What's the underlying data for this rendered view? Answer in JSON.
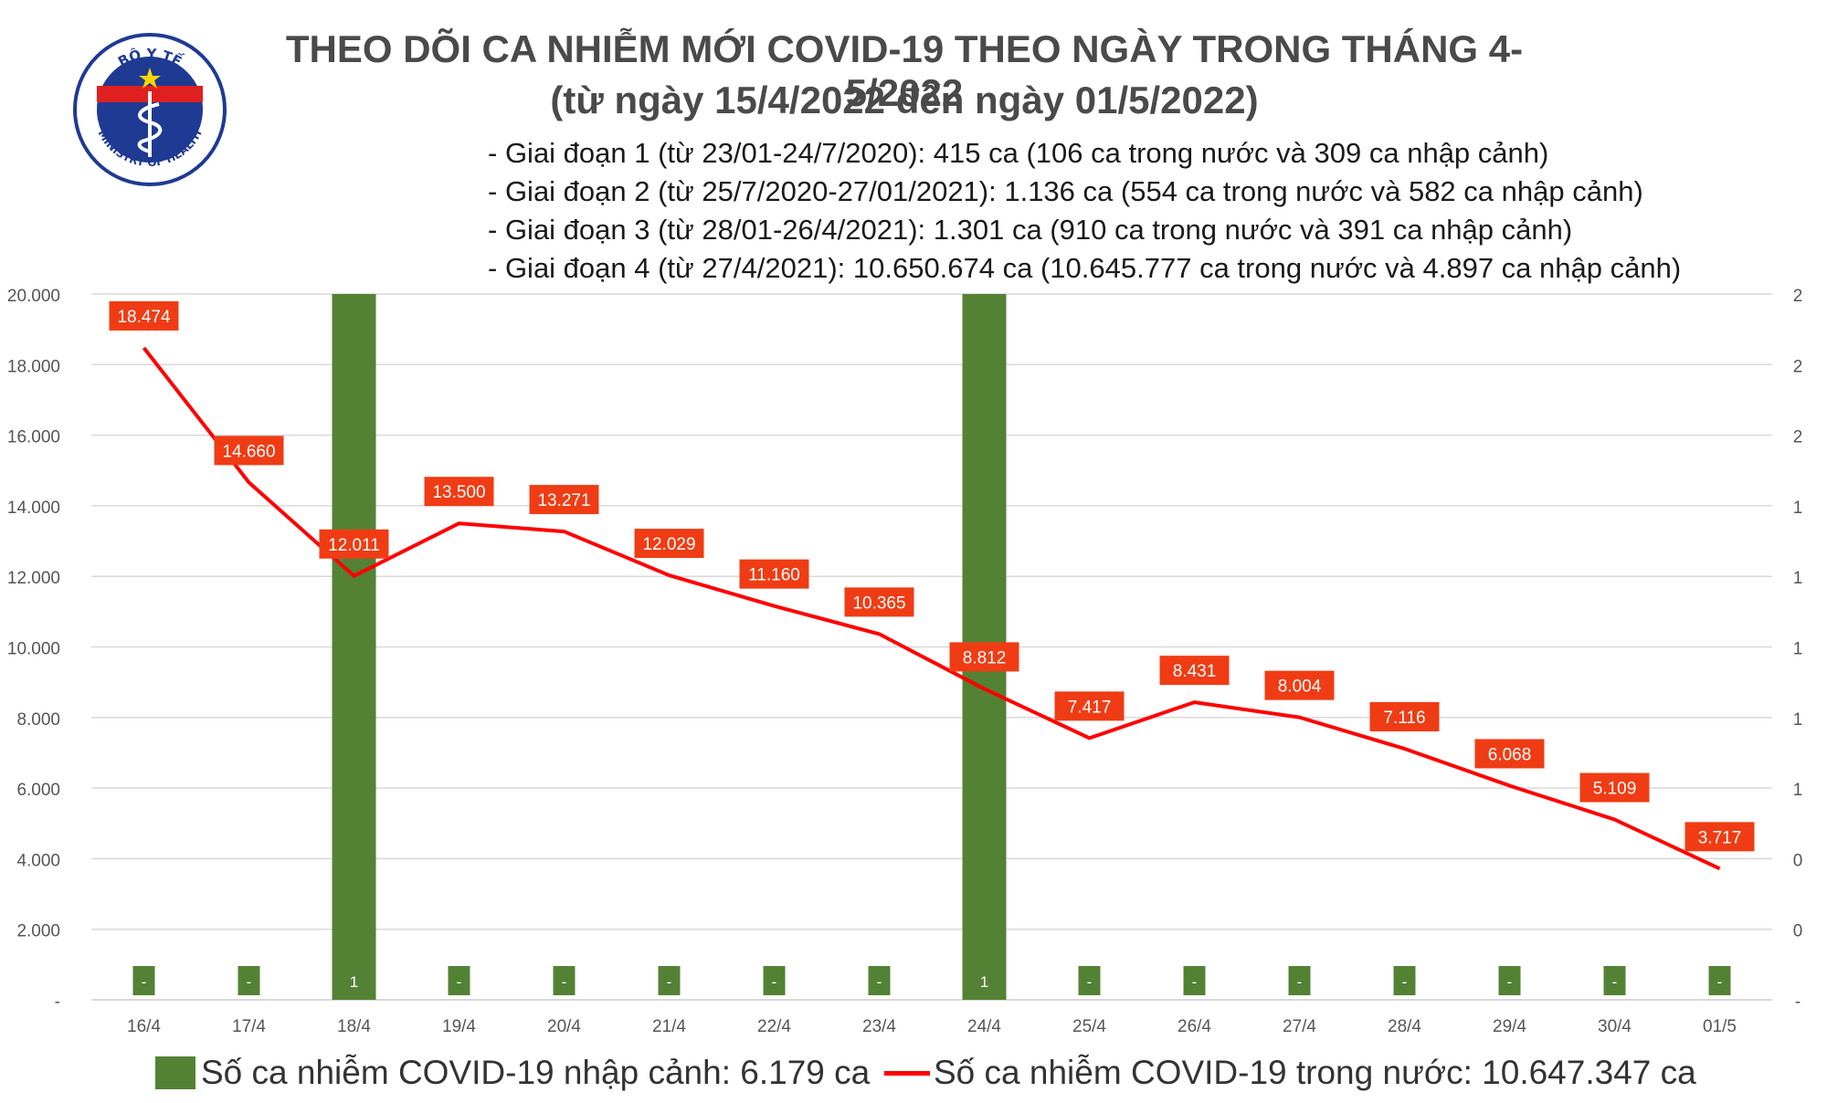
{
  "header": {
    "title_line1": "THEO DÕI CA NHIỄM MỚI COVID-19 THEO NGÀY TRONG THÁNG 4-5/2022",
    "title_line2": "(từ ngày 15/4/2022 đến ngày 01/5/2022)",
    "logo_text_top": "BỘ Y TẾ",
    "logo_text_bottom": "MINISTRY OF HEALTH"
  },
  "notes": [
    "Giai đoạn 1 (từ 23/01-24/7/2020): 415 ca (106 ca trong nước và 309 ca nhập cảnh)",
    "Giai đoạn 2 (từ 25/7/2020-27/01/2021): 1.136 ca (554 ca trong nước và 582 ca nhập cảnh)",
    "Giai đoạn 3 (từ 28/01-26/4/2021): 1.301 ca (910 ca trong nước và 391 ca nhập cảnh)",
    "Giai đoạn 4 (từ 27/4/2021): 10.650.674 ca (10.645.777 ca trong nước và 4.897 ca nhập cảnh)"
  ],
  "colors": {
    "bar": "#548235",
    "line": "#ff0000",
    "label_bg": "#f03c14",
    "grid": "#d9d9d9",
    "logo_blue": "#1f3a93"
  },
  "legend": {
    "bar_label": "Số ca nhiễm COVID-19 nhập cảnh: 6.179 ca",
    "line_label": "Số ca nhiễm COVID-19 trong nước: 10.647.347 ca"
  },
  "chart_data": {
    "type": "bar+line",
    "categories": [
      "16/4",
      "17/4",
      "18/4",
      "19/4",
      "20/4",
      "21/4",
      "22/4",
      "23/4",
      "24/4",
      "25/4",
      "26/4",
      "27/4",
      "28/4",
      "29/4",
      "30/4",
      "01/5"
    ],
    "series": [
      {
        "name": "Số ca nhiễm COVID-19 nhập cảnh: 6.179 ca",
        "type": "bar",
        "axis": "right",
        "values": [
          0,
          0,
          1,
          0,
          0,
          0,
          0,
          0,
          1,
          0,
          0,
          0,
          0,
          0,
          0,
          0
        ],
        "labels": [
          "-",
          "-",
          "1",
          "-",
          "-",
          "-",
          "-",
          "-",
          "1",
          "-",
          "-",
          "-",
          "-",
          "-",
          "-",
          "-"
        ]
      },
      {
        "name": "Số ca nhiễm COVID-19 trong nước: 10.647.347 ca",
        "type": "line",
        "axis": "left",
        "values": [
          18474,
          14660,
          12011,
          13500,
          13271,
          12029,
          11160,
          10365,
          8812,
          7417,
          8431,
          8004,
          7116,
          6068,
          5109,
          3717
        ],
        "labels": [
          "18.474",
          "14.660",
          "12.011",
          "13.500",
          "13.271",
          "12.029",
          "11.160",
          "10.365",
          "8.812",
          "7.417",
          "8.431",
          "8.004",
          "7.116",
          "6.068",
          "5.109",
          "3.717"
        ]
      }
    ],
    "y_left": {
      "min": 0,
      "max": 20000,
      "ticks": [
        0,
        2000,
        4000,
        6000,
        8000,
        10000,
        12000,
        14000,
        16000,
        18000,
        20000
      ],
      "tick_labels": [
        "-",
        "2.000",
        "4.000",
        "6.000",
        "8.000",
        "10.000",
        "12.000",
        "14.000",
        "16.000",
        "18.000",
        "20.000"
      ]
    },
    "y_right": {
      "min": 0,
      "max": 1,
      "tick_labels": [
        "-",
        "0",
        "0",
        "1",
        "1",
        "1",
        "1",
        "1",
        "2",
        "2",
        "2"
      ]
    },
    "grid": true,
    "legend_position": "bottom"
  }
}
